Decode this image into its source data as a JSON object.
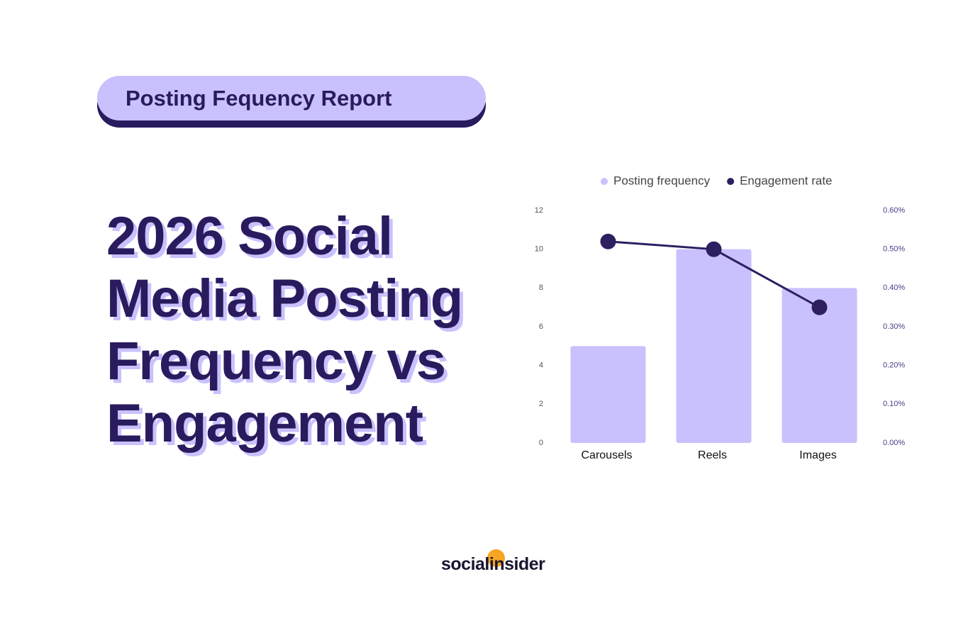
{
  "badge": "Posting Fequency Report",
  "headline": "2026 Social Media Posting Frequency vs Engagement",
  "brand": "socialinsider",
  "chart_data": {
    "type": "bar",
    "categories": [
      "Carousels",
      "Reels",
      "Images"
    ],
    "series": [
      {
        "name": "Posting frequency",
        "type": "bar",
        "color": "#c9c1fd",
        "values": [
          5,
          10,
          8
        ]
      },
      {
        "name": "Engagement rate",
        "type": "line",
        "axis": "y2",
        "color": "#2d1f60",
        "values": [
          0.52,
          0.5,
          0.35
        ]
      }
    ],
    "ylim": [
      0,
      12
    ],
    "yticks": [
      0,
      2,
      4,
      6,
      8,
      10,
      12
    ],
    "y2lim": [
      0,
      0.6
    ],
    "y2ticks": [
      {
        "value": 0,
        "label": "0.00%"
      },
      {
        "value": 0.1,
        "label": "0.10%"
      },
      {
        "value": 0.2,
        "label": "0.20%"
      },
      {
        "value": 0.3,
        "label": "0.30%"
      },
      {
        "value": 0.4,
        "label": "0.40%"
      },
      {
        "value": 0.5,
        "label": "0.50%"
      },
      {
        "value": 0.6,
        "label": "0.60%"
      }
    ],
    "legend": "top"
  }
}
